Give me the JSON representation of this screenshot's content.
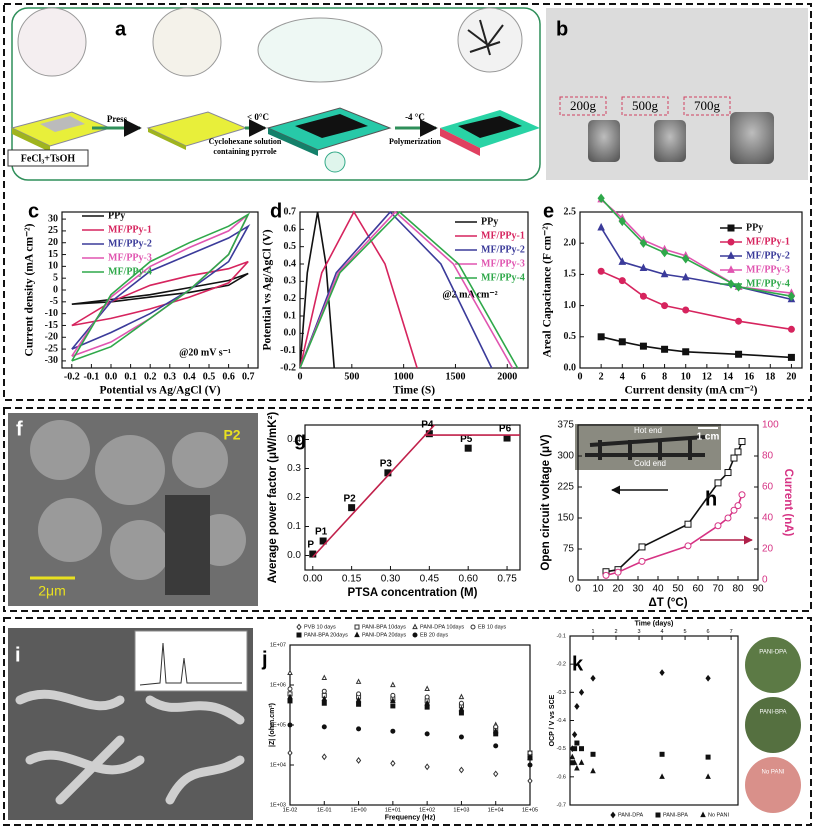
{
  "figure": {
    "panel_labels": [
      "a",
      "b",
      "c",
      "d",
      "e",
      "f",
      "g",
      "h",
      "i",
      "j",
      "k"
    ],
    "a_texts": [
      "FeCl₃+TsOH",
      "Press",
      "< 0°C",
      "Cyclohexane solution",
      "containing pyrrole",
      "-4 °C",
      "Polymerization"
    ],
    "b_weights": [
      "200g",
      "500g",
      "700g"
    ],
    "f_texts": [
      "P2",
      "2μm"
    ],
    "h_inset": [
      "Hot end",
      "Cold end",
      "1 cm"
    ],
    "k_photos": [
      "PANI-DPA",
      "PANI-BPA",
      "No PANI"
    ]
  },
  "chart_data": [
    {
      "type": "line",
      "ylabel": "Current density (mA cm⁻²)",
      "xlabel": "Potential vs Ag/AgCl (V)",
      "annotations": [
        "@20 mV s⁻¹"
      ],
      "xlim": [
        -0.25,
        0.75
      ],
      "ylim": [
        -33,
        33
      ],
      "xticks": [
        -0.2,
        -0.1,
        {
          "value": 0,
          "label": "0.0"
        },
        0.1,
        0.2,
        0.3,
        0.4,
        0.5,
        0.6,
        0.7
      ],
      "yticks": [
        -30,
        -25,
        -20,
        -15,
        -10,
        -5,
        0,
        5,
        10,
        15,
        20,
        25,
        30
      ],
      "series": [
        {
          "name": "PPy",
          "color": "#111111",
          "x": [
            -0.2,
            0,
            0.2,
            0.4,
            0.6,
            0.7,
            0.6,
            0.4,
            0.2,
            0,
            -0.2
          ],
          "values": [
            -6,
            -4,
            -2,
            1,
            4,
            7,
            2,
            -1,
            -3,
            -5,
            -6
          ]
        },
        {
          "name": "MF/PPy-1",
          "color": "#d6245e",
          "x": [
            -0.2,
            0,
            0.2,
            0.4,
            0.6,
            0.7,
            0.6,
            0.4,
            0.2,
            0,
            -0.2
          ],
          "values": [
            -15,
            -5,
            2,
            6,
            9,
            12,
            3,
            -3,
            -8,
            -12,
            -15
          ]
        },
        {
          "name": "MF/PPy-2",
          "color": "#3b3b9a",
          "x": [
            -0.2,
            0,
            0.2,
            0.4,
            0.6,
            0.7,
            0.6,
            0.4,
            0.2,
            0,
            -0.2
          ],
          "values": [
            -25,
            -5,
            8,
            15,
            22,
            27,
            12,
            0,
            -10,
            -18,
            -25
          ]
        },
        {
          "name": "MF/PPy-3",
          "color": "#e055b0",
          "x": [
            -0.2,
            0,
            0.2,
            0.4,
            0.6,
            0.7,
            0.6,
            0.4,
            0.2,
            0,
            -0.2
          ],
          "values": [
            -28,
            -3,
            10,
            18,
            25,
            32,
            15,
            0,
            -12,
            -22,
            -28
          ]
        },
        {
          "name": "MF/PPy-4",
          "color": "#2fa84a",
          "x": [
            -0.2,
            0,
            0.2,
            0.4,
            0.6,
            0.7,
            0.6,
            0.4,
            0.2,
            0,
            -0.2
          ],
          "values": [
            -30,
            -2,
            12,
            20,
            27,
            32,
            15,
            0,
            -12,
            -24,
            -30
          ]
        }
      ]
    },
    {
      "type": "line",
      "ylabel": "Potential vs Ag/AgCl (V)",
      "xlabel": "Time (S)",
      "annotations": [
        "@2 mA cm⁻²"
      ],
      "xlim": [
        0,
        2200
      ],
      "ylim": [
        -0.2,
        0.7
      ],
      "xticks": [
        0,
        500,
        1000,
        1500,
        2000
      ],
      "yticks": [
        -0.2,
        -0.1,
        {
          "value": 0,
          "label": "0.0"
        },
        0.1,
        0.2,
        0.3,
        0.4,
        0.5,
        0.6,
        0.7
      ],
      "series": [
        {
          "name": "PPy",
          "color": "#111111",
          "x": [
            0,
            70,
            170,
            250,
            330
          ],
          "values": [
            -0.2,
            0.35,
            0.7,
            0.4,
            -0.2
          ]
        },
        {
          "name": "MF/PPy-1",
          "color": "#d6245e",
          "x": [
            0,
            210,
            520,
            820,
            1130
          ],
          "values": [
            -0.2,
            0.35,
            0.7,
            0.4,
            -0.2
          ]
        },
        {
          "name": "MF/PPy-2",
          "color": "#3b3b9a",
          "x": [
            0,
            350,
            870,
            1360,
            1850
          ],
          "values": [
            -0.2,
            0.35,
            0.7,
            0.4,
            -0.2
          ]
        },
        {
          "name": "MF/PPy-3",
          "color": "#e055b0",
          "x": [
            0,
            370,
            920,
            1480,
            2050
          ],
          "values": [
            -0.2,
            0.35,
            0.7,
            0.4,
            -0.2
          ]
        },
        {
          "name": "MF/PPy-4",
          "color": "#2fa84a",
          "x": [
            0,
            385,
            960,
            1530,
            2100
          ],
          "values": [
            -0.2,
            0.35,
            0.7,
            0.4,
            -0.2
          ]
        }
      ]
    },
    {
      "type": "line",
      "ylabel": "Areal Capacitance (F cm⁻²)",
      "xlabel": "Current density (mA cm⁻²)",
      "xlim": [
        0,
        21
      ],
      "ylim": [
        0,
        2.5
      ],
      "xticks": [
        0,
        2,
        4,
        6,
        8,
        10,
        12,
        14,
        16,
        18,
        20
      ],
      "yticks": [
        {
          "value": 0,
          "label": "0.0"
        },
        0.5,
        {
          "value": 1,
          "label": "1.0"
        },
        1.5,
        {
          "value": 2,
          "label": "2.0"
        },
        2.5
      ],
      "series": [
        {
          "name": "PPy",
          "color": "#111111",
          "marker": "square",
          "x": [
            2,
            4,
            6,
            8,
            10,
            15,
            20
          ],
          "values": [
            0.5,
            0.42,
            0.35,
            0.3,
            0.26,
            0.22,
            0.17
          ]
        },
        {
          "name": "MF/PPy-1",
          "color": "#d6245e",
          "marker": "circle",
          "x": [
            2,
            4,
            6,
            8,
            10,
            15,
            20
          ],
          "values": [
            1.55,
            1.4,
            1.15,
            1.0,
            0.93,
            0.75,
            0.62
          ]
        },
        {
          "name": "MF/PPy-2",
          "color": "#3b3b9a",
          "marker": "triangle",
          "x": [
            2,
            4,
            6,
            8,
            10,
            15,
            20
          ],
          "values": [
            2.25,
            1.7,
            1.6,
            1.5,
            1.45,
            1.3,
            1.1
          ]
        },
        {
          "name": "MF/PPy-3",
          "color": "#e055b0",
          "marker": "triangle",
          "x": [
            2,
            4,
            6,
            8,
            10,
            15,
            20
          ],
          "values": [
            2.7,
            2.4,
            2.05,
            1.9,
            1.8,
            1.3,
            1.2
          ]
        },
        {
          "name": "MF/PPy-4",
          "color": "#2fa84a",
          "marker": "diamond",
          "x": [
            2,
            4,
            6,
            8,
            10,
            15,
            20
          ],
          "values": [
            2.72,
            2.35,
            2.0,
            1.85,
            1.75,
            1.3,
            1.15
          ]
        }
      ]
    },
    {
      "type": "scatter",
      "ylabel": "Average power factor (μW/mK²)",
      "xlabel": "PTSA concentration (M)",
      "xlim": [
        -0.03,
        0.8
      ],
      "ylim": [
        -0.05,
        0.45
      ],
      "xticks": [
        {
          "value": 0,
          "label": "0.00"
        },
        0.15,
        {
          "value": 0.3,
          "label": "0.30"
        },
        0.45,
        {
          "value": 0.6,
          "label": "0.60"
        },
        0.75
      ],
      "yticks": [
        {
          "value": 0,
          "label": "0.0"
        },
        0.1,
        0.2,
        0.3,
        0.4
      ],
      "series": [
        {
          "color": "#111111",
          "marker": "square",
          "line": false,
          "point_labels": [
            "P",
            "P1",
            "P2",
            "P3",
            "P4",
            "P5",
            "P6"
          ],
          "x": [
            0,
            0.04,
            0.15,
            0.29,
            0.45,
            0.6,
            0.75
          ],
          "values": [
            0.005,
            0.05,
            0.165,
            0.285,
            0.42,
            0.37,
            0.405
          ]
        },
        {
          "color": "#c0204a",
          "x": [
            0,
            0.47
          ],
          "values": [
            -0.005,
            0.45
          ]
        },
        {
          "color": "#c0204a",
          "x": [
            0.43,
            0.8
          ],
          "values": [
            0.415,
            0.415
          ]
        }
      ]
    },
    {
      "type": "line",
      "ylabel": "Open circuit voltage (μV)",
      "y2label": "Current (nA)",
      "xlabel": "ΔT (°C)",
      "xlim": [
        0,
        90
      ],
      "ylim": [
        0,
        375
      ],
      "y2lim": [
        0,
        100
      ],
      "xticks": [
        0,
        10,
        20,
        30,
        40,
        50,
        60,
        70,
        80,
        90
      ],
      "yticks": [
        0,
        75,
        150,
        225,
        300,
        375
      ],
      "y2ticks": [
        0,
        20,
        40,
        60,
        80,
        100
      ],
      "series": [
        {
          "color": "#111111",
          "marker": "square",
          "filled": false,
          "x": [
            14,
            20,
            32,
            55,
            70,
            75,
            78,
            80,
            82
          ],
          "values": [
            20,
            25,
            80,
            135,
            235,
            260,
            295,
            310,
            335
          ]
        },
        {
          "color": "#d63384",
          "marker": "circle",
          "filled": false,
          "axis": "y2",
          "x": [
            14,
            20,
            32,
            55,
            70,
            75,
            78,
            80,
            82
          ],
          "values": [
            3,
            5,
            12,
            22,
            35,
            40,
            45,
            48,
            55
          ]
        }
      ]
    },
    {
      "type": "scatter",
      "ylabel": "|Z| (ohm.cm²)",
      "xlabel": "Frequency (Hz)",
      "xlog": true,
      "ylog": true,
      "xlim": [
        0.01,
        100000
      ],
      "ylim": [
        1000,
        10000000
      ],
      "xticks": [
        {
          "value": 0.01,
          "label": "1E-02"
        },
        {
          "value": 0.1,
          "label": "1E-01"
        },
        {
          "value": 1,
          "label": "1E+00"
        },
        {
          "value": 10,
          "label": "1E+01"
        },
        {
          "value": 100,
          "label": "1E+02"
        },
        {
          "value": 1000,
          "label": "1E+03"
        },
        {
          "value": 10000,
          "label": "1E+04"
        },
        {
          "value": 100000,
          "label": "1E+05"
        }
      ],
      "yticks": [
        {
          "value": 1000,
          "label": "1E+03"
        },
        {
          "value": 10000,
          "label": "1E+04"
        },
        {
          "value": 100000,
          "label": "1E+05"
        },
        {
          "value": 1000000,
          "label": "1E+06"
        },
        {
          "value": 10000000,
          "label": "1E+07"
        }
      ],
      "series": [
        {
          "name": "PVB 10 days",
          "color": "#333333",
          "marker": "diamond",
          "filled": false,
          "line": false,
          "x": [
            0.01,
            0.1,
            1,
            10,
            100,
            1000,
            10000,
            100000
          ],
          "values": [
            20000,
            16000,
            13000,
            11000,
            9000,
            7500,
            6000,
            4000
          ]
        },
        {
          "name": "PANI-BPA 10days",
          "color": "#333333",
          "marker": "square",
          "filled": false,
          "line": false,
          "x": [
            0.01,
            0.1,
            1,
            10,
            100,
            1000,
            10000,
            100000
          ],
          "values": [
            600000,
            550000,
            500000,
            450000,
            400000,
            300000,
            80000,
            20000
          ]
        },
        {
          "name": "PANI-DPA 10days",
          "color": "#333333",
          "marker": "triangle",
          "filled": false,
          "line": false,
          "x": [
            0.01,
            0.1,
            1,
            10,
            100,
            1000,
            10000,
            100000
          ],
          "values": [
            2000000,
            1500000,
            1200000,
            1000000,
            800000,
            500000,
            100000,
            20000
          ]
        },
        {
          "name": "EB 10 days",
          "color": "#333333",
          "marker": "circle",
          "filled": false,
          "line": false,
          "x": [
            0.01,
            0.1,
            1,
            10,
            100,
            1000,
            10000,
            100000
          ],
          "values": [
            800000,
            700000,
            600000,
            550000,
            500000,
            350000,
            90000,
            20000
          ]
        },
        {
          "name": "PANI-BPA 20days",
          "color": "#111111",
          "marker": "square",
          "line": false,
          "x": [
            0.01,
            0.1,
            1,
            10,
            100,
            1000,
            10000,
            100000
          ],
          "values": [
            400000,
            350000,
            330000,
            300000,
            280000,
            200000,
            60000,
            15000
          ]
        },
        {
          "name": "PANI-DPA 20days",
          "color": "#111111",
          "marker": "triangle",
          "line": false,
          "x": [
            0.01,
            0.1,
            1,
            10,
            100,
            1000,
            10000,
            100000
          ],
          "values": [
            500000,
            450000,
            420000,
            400000,
            350000,
            250000,
            70000,
            15000
          ]
        },
        {
          "name": "EB 20 days",
          "color": "#111111",
          "marker": "circle",
          "line": false,
          "x": [
            0.01,
            0.1,
            1,
            10,
            100,
            1000,
            10000,
            100000
          ],
          "values": [
            100000,
            90000,
            80000,
            70000,
            60000,
            50000,
            30000,
            10000
          ]
        }
      ]
    },
    {
      "type": "scatter",
      "ylabel": "OCP / V vs SCE",
      "xlabel": "Time (days)",
      "xaxis_top": true,
      "xlim": [
        0,
        7.3
      ],
      "ylim": [
        -0.7,
        -0.1
      ],
      "xticks": [
        1,
        2,
        3,
        4,
        5,
        6,
        7
      ],
      "yticks": [
        -0.1,
        -0.2,
        -0.3,
        -0.4,
        -0.5,
        -0.6,
        -0.7
      ],
      "series": [
        {
          "name": "PANI-DPA",
          "color": "#111111",
          "marker": "diamond",
          "line": false,
          "x": [
            0.1,
            0.2,
            0.3,
            0.5,
            1,
            4,
            6
          ],
          "values": [
            -0.5,
            -0.45,
            -0.35,
            -0.3,
            -0.25,
            -0.23,
            -0.25
          ]
        },
        {
          "name": "PANI-BPA",
          "color": "#111111",
          "marker": "square",
          "line": false,
          "x": [
            0.1,
            0.2,
            0.3,
            0.5,
            1,
            4,
            6
          ],
          "values": [
            -0.55,
            -0.5,
            -0.48,
            -0.5,
            -0.52,
            -0.52,
            -0.53
          ]
        },
        {
          "name": "No PANI",
          "color": "#111111",
          "marker": "triangle",
          "line": false,
          "x": [
            0.1,
            0.2,
            0.3,
            0.5,
            1,
            4,
            6
          ],
          "values": [
            -0.53,
            -0.55,
            -0.57,
            -0.55,
            -0.58,
            -0.6,
            -0.6
          ]
        }
      ]
    }
  ]
}
